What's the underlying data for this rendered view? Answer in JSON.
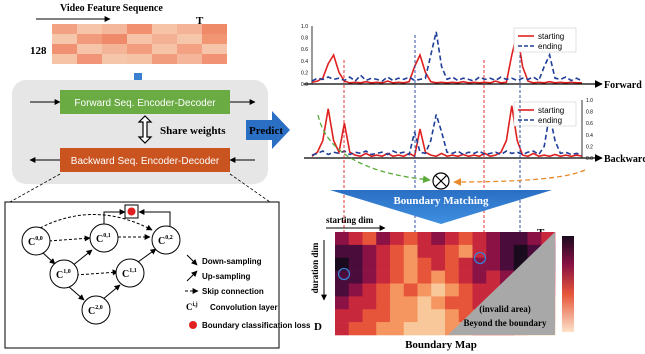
{
  "feature": {
    "title": "Video Feature Sequence",
    "t_label": "T",
    "dim_label": "128",
    "colors": [
      [
        "#f2a283",
        "#f6c4a9",
        "#f4b79c",
        "#f09070",
        "#f6c3a6",
        "#f4b297",
        "#ee8a68"
      ],
      [
        "#f6c6ab",
        "#f29b7c",
        "#ee8a69",
        "#f6c3a8",
        "#f4b095",
        "#f6c6ab",
        "#f19573"
      ],
      [
        "#f09173",
        "#f6c4a8",
        "#f4b498",
        "#f29d7e",
        "#f6c3a7",
        "#f2a283",
        "#f6c4a9"
      ],
      [
        "#f6c3a6",
        "#f19477",
        "#f6c6ab",
        "#f6c2a5",
        "#f29c7e",
        "#f4b59a",
        "#f09273"
      ]
    ]
  },
  "encoders": {
    "forward": "Forward Seq. Encoder-Decoder",
    "backward": "Backward Seq. Encoder-Decoder",
    "share": "Share weights",
    "predict": "Predict"
  },
  "unet": {
    "nodes": [
      {
        "id": "c00",
        "sup": "0,0"
      },
      {
        "id": "c01",
        "sup": "0,1"
      },
      {
        "id": "c02",
        "sup": "0,2"
      },
      {
        "id": "c10",
        "sup": "1,0"
      },
      {
        "id": "c11",
        "sup": "1,1"
      },
      {
        "id": "c20",
        "sup": "2,0"
      }
    ],
    "legend": {
      "down": "Down-sampling",
      "up": "Up-sampling",
      "skip": "Skip connection",
      "conv": "Convolution layer",
      "conv_symbol_sup": "i,j",
      "loss": "Boundary classification loss"
    }
  },
  "chart_data": [
    {
      "type": "line",
      "label": "Forward",
      "x": [
        0,
        1,
        2,
        3,
        4,
        5,
        6,
        7,
        8,
        9,
        10,
        11,
        12,
        13,
        14,
        15,
        16,
        17,
        18,
        19,
        20,
        21,
        22,
        23,
        24,
        25,
        26,
        27,
        28,
        29,
        30,
        31,
        32,
        33,
        34,
        35,
        36,
        37,
        38,
        39,
        40,
        41,
        42,
        43,
        44,
        45,
        46,
        47,
        48,
        49,
        50
      ],
      "ylim": [
        0,
        1.0
      ],
      "yticks": [
        "0.0",
        "0.2",
        "0.4",
        "0.6",
        "0.8",
        "1.0"
      ],
      "y_axis_side": "left",
      "series": [
        {
          "name": "starting",
          "color": "#e02020",
          "values": [
            0.03,
            0.05,
            0.1,
            0.35,
            0.5,
            0.2,
            0.05,
            0.02,
            0.03,
            0.02,
            0.04,
            0.02,
            0.03,
            0.02,
            0.05,
            0.02,
            0.03,
            0.02,
            0.04,
            0.3,
            0.5,
            0.2,
            0.04,
            0.02,
            0.03,
            0.02,
            0.03,
            0.02,
            0.04,
            0.02,
            0.03,
            0.02,
            0.03,
            0.02,
            0.05,
            0.02,
            0.03,
            0.5,
            0.88,
            0.3,
            0.05,
            0.02,
            0.03,
            0.02,
            0.04,
            0.02,
            0.03,
            0.02,
            0.03,
            0.02,
            0.02
          ]
        },
        {
          "name": "ending",
          "color": "#1f3e99",
          "values": [
            0.05,
            0.1,
            0.08,
            0.12,
            0.08,
            0.1,
            0.06,
            0.12,
            0.05,
            0.15,
            0.06,
            0.1,
            0.08,
            0.05,
            0.12,
            0.06,
            0.1,
            0.08,
            0.12,
            0.06,
            0.08,
            0.1,
            0.5,
            0.9,
            0.3,
            0.08,
            0.12,
            0.06,
            0.1,
            0.08,
            0.05,
            0.12,
            0.08,
            0.1,
            0.06,
            0.12,
            0.08,
            0.1,
            0.06,
            0.1,
            0.08,
            0.12,
            0.06,
            0.3,
            0.5,
            0.1,
            0.08,
            0.12,
            0.06,
            0.1,
            0.05
          ]
        }
      ]
    },
    {
      "type": "line",
      "label": "Backward",
      "x": [
        0,
        1,
        2,
        3,
        4,
        5,
        6,
        7,
        8,
        9,
        10,
        11,
        12,
        13,
        14,
        15,
        16,
        17,
        18,
        19,
        20,
        21,
        22,
        23,
        24,
        25,
        26,
        27,
        28,
        29,
        30,
        31,
        32,
        33,
        34,
        35,
        36,
        37,
        38,
        39,
        40,
        41,
        42,
        43,
        44,
        45,
        46,
        47,
        48,
        49,
        50
      ],
      "ylim": [
        0,
        1.0
      ],
      "yticks": [
        "0.0",
        "0.2",
        "0.4",
        "0.6",
        "0.8",
        "1.0"
      ],
      "y_axis_side": "right",
      "series": [
        {
          "name": "starting",
          "color": "#e02020",
          "values": [
            0.03,
            0.1,
            0.3,
            0.85,
            0.3,
            0.1,
            0.6,
            0.1,
            0.05,
            0.03,
            0.08,
            0.03,
            0.05,
            0.03,
            0.08,
            0.03,
            0.05,
            0.03,
            0.08,
            0.03,
            0.5,
            0.1,
            0.05,
            0.03,
            0.08,
            0.03,
            0.05,
            0.03,
            0.06,
            0.03,
            0.05,
            0.03,
            0.08,
            0.03,
            0.05,
            0.1,
            0.3,
            0.9,
            0.3,
            0.05,
            0.03,
            0.08,
            0.03,
            0.05,
            0.03,
            0.06,
            0.03,
            0.05,
            0.03,
            0.05,
            0.03
          ]
        },
        {
          "name": "ending",
          "color": "#1f3e99",
          "values": [
            0.05,
            0.08,
            0.12,
            0.06,
            0.1,
            0.08,
            0.12,
            0.06,
            0.1,
            0.08,
            0.12,
            0.06,
            0.08,
            0.1,
            0.06,
            0.12,
            0.08,
            0.1,
            0.06,
            0.45,
            0.1,
            0.08,
            0.3,
            0.75,
            0.45,
            0.1,
            0.08,
            0.12,
            0.06,
            0.1,
            0.08,
            0.12,
            0.06,
            0.08,
            0.1,
            0.06,
            0.12,
            0.08,
            0.1,
            0.06,
            0.1,
            0.12,
            0.06,
            0.2,
            0.75,
            0.3,
            0.08,
            0.1,
            0.06,
            0.08,
            0.05
          ]
        }
      ]
    }
  ],
  "matching": {
    "title": "Boundary Matching",
    "otimes": "⊗"
  },
  "boundary_map": {
    "starting_dim": "starting dim",
    "duration_dim": "duration dim",
    "t_label": "T",
    "d_label": "D",
    "invalid_1": "(invalid area)",
    "invalid_2": "Beyond the boundary",
    "caption": "Boundary Map",
    "palette": [
      "#1a0a1e",
      "#4a0c3a",
      "#8a1245",
      "#c8283c",
      "#e6543a",
      "#f59660",
      "#f8c89a"
    ],
    "grid": [
      [
        2,
        3,
        4,
        2,
        3,
        4,
        3,
        2,
        3,
        4,
        3,
        2,
        1,
        1,
        2,
        3
      ],
      [
        1,
        1,
        2,
        3,
        4,
        5,
        3,
        3,
        4,
        5,
        3,
        2,
        1,
        0,
        1,
        2
      ],
      [
        0,
        1,
        2,
        3,
        4,
        5,
        4,
        3,
        4,
        3,
        2,
        2,
        1,
        0,
        1,
        2
      ],
      [
        1,
        1,
        2,
        3,
        4,
        5,
        4,
        5,
        4,
        3,
        2,
        3,
        2,
        1,
        2,
        3
      ],
      [
        1,
        2,
        3,
        4,
        5,
        4,
        5,
        6,
        5,
        4,
        3,
        3,
        2,
        2,
        3,
        4
      ],
      [
        2,
        3,
        3,
        4,
        5,
        5,
        6,
        5,
        4,
        4,
        3,
        3,
        3,
        4,
        4,
        5
      ],
      [
        3,
        3,
        4,
        4,
        5,
        5,
        6,
        6,
        5,
        4,
        4,
        3,
        3,
        5,
        5,
        5
      ],
      [
        3,
        4,
        4,
        5,
        5,
        6,
        6,
        6,
        5,
        5,
        4,
        4,
        4,
        5,
        6,
        6
      ]
    ]
  }
}
